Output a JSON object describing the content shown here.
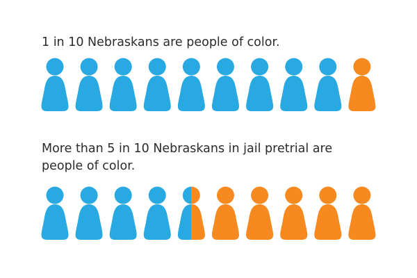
{
  "charts": [
    {
      "caption": "1 in 10 Nebraskans are people of color.",
      "chart_data": {
        "type": "pictograph",
        "total_icons": 10,
        "people_of_color_icons": 1,
        "people_of_color_share": 0.1,
        "color_people_of_color": "#f6891f",
        "color_other": "#29a9e1"
      }
    },
    {
      "caption": "More than 5 in 10 Nebraskans in jail pretrial are people of color.",
      "chart_data": {
        "type": "pictograph",
        "total_icons": 10,
        "people_of_color_icons": 5.5,
        "people_of_color_share": 0.55,
        "color_people_of_color": "#f6891f",
        "color_other": "#29a9e1"
      }
    }
  ]
}
